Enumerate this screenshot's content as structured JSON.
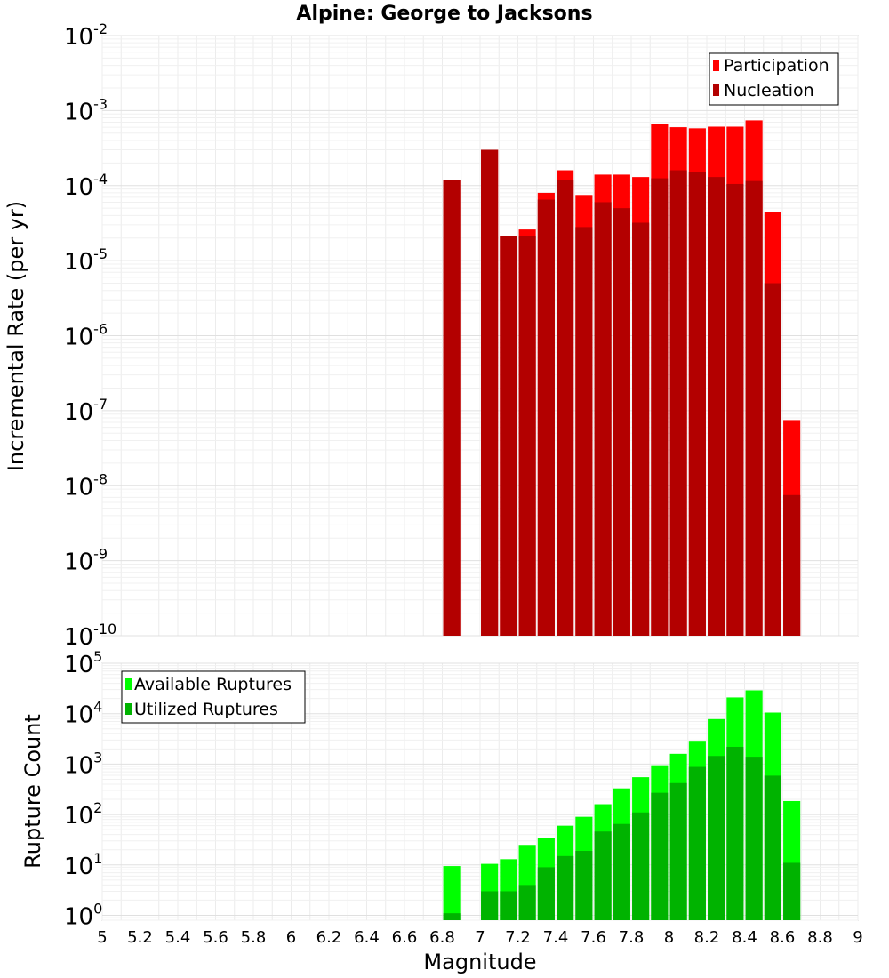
{
  "chart_data": [
    {
      "type": "bar",
      "title": "Alpine: George to Jacksons",
      "ylabel": "Incremental Rate (per yr)",
      "xlabel": "",
      "xlim": [
        5,
        9
      ],
      "ylim": [
        1e-10,
        0.01
      ],
      "yscale": "log",
      "grid": true,
      "legend_position": "top-right",
      "bar_width": 0.09,
      "x": [
        6.85,
        6.95,
        7.05,
        7.15,
        7.25,
        7.35,
        7.45,
        7.55,
        7.65,
        7.75,
        7.85,
        7.95,
        8.05,
        8.15,
        8.25,
        8.35,
        8.45,
        8.55,
        8.65
      ],
      "series": [
        {
          "name": "Participation",
          "color": "#ff0000",
          "values": [
            0.00012,
            null,
            0.0003,
            2.1e-05,
            2.6e-05,
            8e-05,
            0.00016,
            7.5e-05,
            0.00014,
            0.00014,
            0.00013,
            0.00066,
            0.0006,
            0.00058,
            0.00061,
            0.00061,
            0.00074,
            4.5e-05,
            7.5e-08
          ]
        },
        {
          "name": "Nucleation",
          "color": "#b30000",
          "values": [
            0.00012,
            null,
            0.0003,
            2.1e-05,
            2.1e-05,
            6.5e-05,
            0.00012,
            2.8e-05,
            6e-05,
            5e-05,
            3.2e-05,
            0.000125,
            0.00016,
            0.00015,
            0.00013,
            0.000105,
            0.000115,
            5e-06,
            7.5e-09
          ]
        }
      ]
    },
    {
      "type": "bar",
      "title": "",
      "ylabel": "Rupture Count",
      "xlabel": "Magnitude",
      "xlim": [
        5,
        9
      ],
      "ylim": [
        0.8,
        100000.0
      ],
      "yscale": "log",
      "grid": true,
      "legend_position": "top-left",
      "bar_width": 0.09,
      "x": [
        6.85,
        6.95,
        7.05,
        7.15,
        7.25,
        7.35,
        7.45,
        7.55,
        7.65,
        7.75,
        7.85,
        7.95,
        8.05,
        8.15,
        8.25,
        8.35,
        8.45,
        8.55,
        8.65
      ],
      "x_ticks": [
        "5",
        "5.2",
        "5.4",
        "5.6",
        "5.8",
        "6",
        "6.2",
        "6.4",
        "6.6",
        "6.8",
        "7",
        "7.2",
        "7.4",
        "7.6",
        "7.8",
        "8",
        "8.2",
        "8.4",
        "8.6",
        "8.8",
        "9"
      ],
      "series": [
        {
          "name": "Available Ruptures",
          "color": "#00ff00",
          "values": [
            9.5,
            null,
            10.5,
            13,
            25,
            34,
            60,
            90,
            160,
            330,
            550,
            950,
            1600,
            2900,
            7800,
            21000,
            29000,
            10500,
            185
          ]
        },
        {
          "name": "Utilized Ruptures",
          "color": "#00b300",
          "values": [
            1.1,
            null,
            3,
            3,
            4,
            9,
            15,
            19,
            46,
            65,
            110,
            270,
            420,
            880,
            1450,
            2200,
            1400,
            590,
            11
          ]
        }
      ]
    }
  ]
}
